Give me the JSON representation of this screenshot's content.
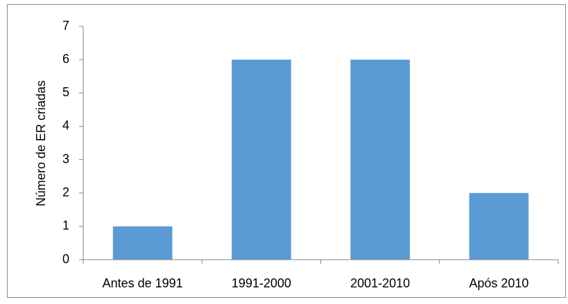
{
  "chart_data": {
    "type": "bar",
    "y_label": "Número de ER criadas",
    "categories": [
      "Antes de 1991",
      "1991-2000",
      "2001-2010",
      "Após 2010"
    ],
    "values": [
      1,
      6,
      6,
      2
    ],
    "color": "#5b9bd5",
    "ylim": [
      0,
      7
    ],
    "yticks": [
      0,
      1,
      2,
      3,
      4,
      5,
      6,
      7
    ],
    "grid": false
  }
}
